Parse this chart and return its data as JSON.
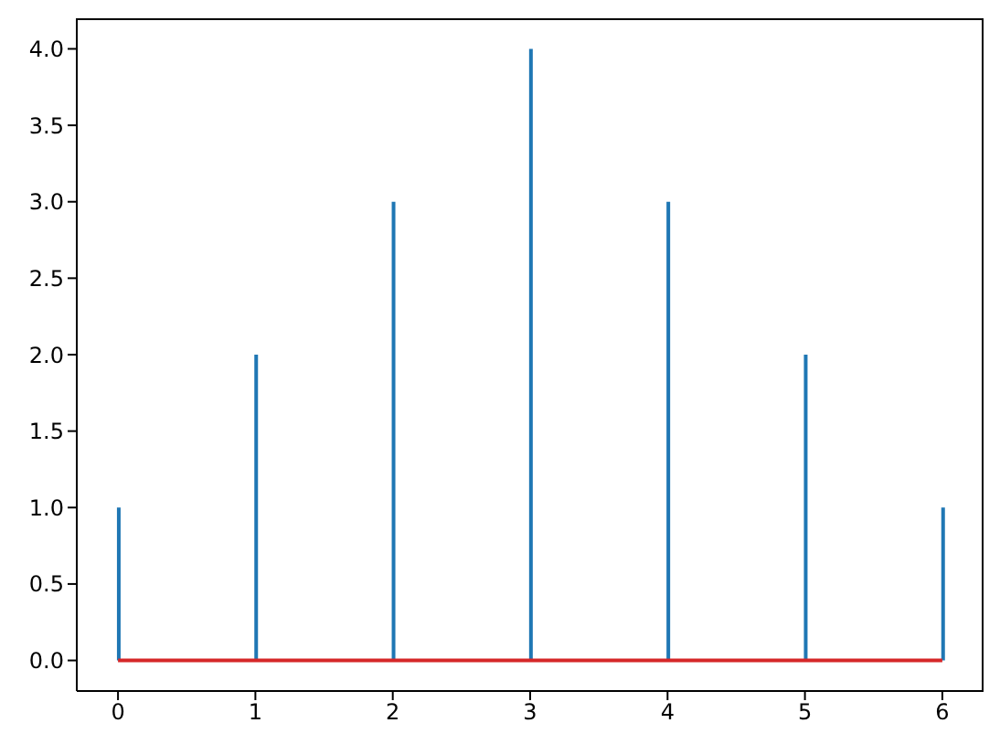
{
  "chart_data": {
    "type": "bar",
    "x": [
      0,
      1,
      2,
      3,
      4,
      5,
      6
    ],
    "series": [
      {
        "color": "#1f77b4",
        "values": [
          1,
          2,
          3,
          4,
          3,
          2,
          1
        ]
      }
    ],
    "xlim": [
      -0.3,
      6.3
    ],
    "xticks": [
      0,
      1,
      2,
      3,
      4,
      5,
      6
    ],
    "ylim": [
      -0.2,
      4.2
    ],
    "yticks": [
      {
        "value": 0,
        "label": "0.0"
      },
      {
        "value": 0.5,
        "label": "0.5"
      },
      {
        "value": 1,
        "label": "1.0"
      },
      {
        "value": 1.5,
        "label": "1.5"
      },
      {
        "value": 2,
        "label": "2.0"
      },
      {
        "value": 2.5,
        "label": "2.5"
      },
      {
        "value": 3,
        "label": "3.0"
      },
      {
        "value": 3.5,
        "label": "3.5"
      },
      {
        "value": 4,
        "label": "4.0"
      }
    ],
    "ref_lines": [
      {
        "axis": "y",
        "value": 0,
        "color": "#d62728"
      }
    ],
    "grid": false,
    "legend": false
  }
}
